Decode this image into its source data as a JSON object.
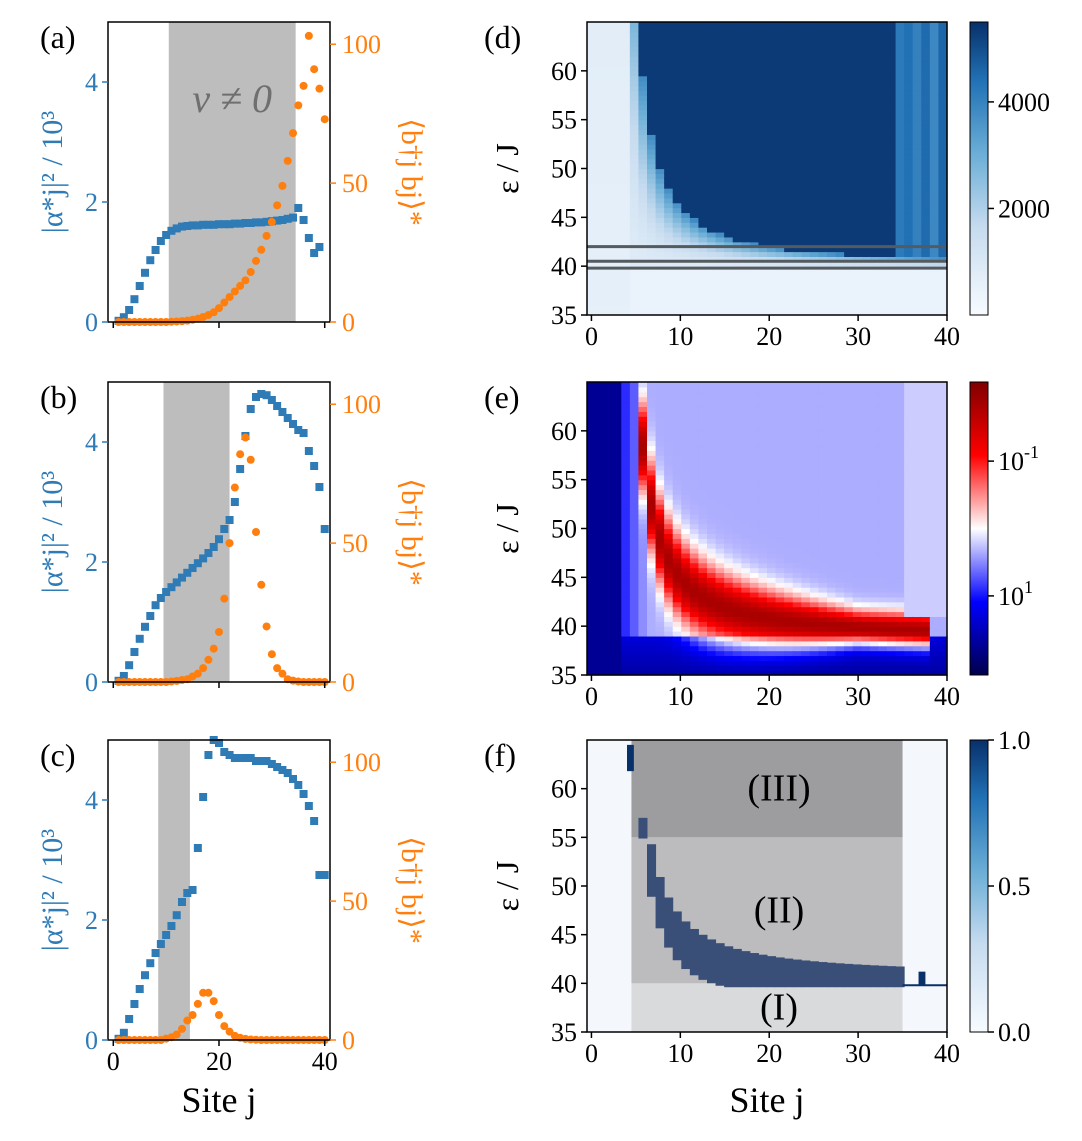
{
  "colors": {
    "blue": "#2f7bb6",
    "orange": "#ff7f0e",
    "shade": "#bdbdbd",
    "region_I": "#d9dadc",
    "region_II": "#bcbcbe",
    "region_III": "#9d9d9f",
    "mask_blue": "#3a4f78",
    "line_gray": "#555a5e"
  },
  "labels": {
    "site_j": "Site j",
    "eps_J": "ε / J",
    "alpha_axis": "|α*j|² / 10³",
    "n_axis": "⟨b†j bj⟩*",
    "nu_neq_0": "ν ≠ 0",
    "region_I": "(I)",
    "region_II": "(II)",
    "region_III": "(III)"
  },
  "chart_data": [
    {
      "panel": "(a)",
      "type": "scatter",
      "xlim": [
        -1,
        41
      ],
      "x_ticks": [
        "0",
        "20",
        "40"
      ],
      "x_tick_labels_shown": false,
      "ylim_left": [
        0,
        5
      ],
      "yticks_left": [
        "0",
        "2",
        "4"
      ],
      "ylim_right": [
        0,
        108
      ],
      "yticks_right": [
        "0",
        "50",
        "100"
      ],
      "shade_range": [
        10.5,
        34.5
      ],
      "annotation": "ν ≠ 0",
      "series": [
        {
          "name": "|α*j|²/10³",
          "axis": "left",
          "marker": "square",
          "x": [
            1,
            2,
            3,
            4,
            5,
            6,
            7,
            8,
            9,
            10,
            11,
            12,
            13,
            14,
            15,
            16,
            17,
            18,
            19,
            20,
            21,
            22,
            23,
            24,
            25,
            26,
            27,
            28,
            29,
            30,
            31,
            32,
            33,
            34,
            35,
            36,
            37,
            38,
            39
          ],
          "values": [
            0.02,
            0.08,
            0.2,
            0.38,
            0.6,
            0.82,
            1.03,
            1.2,
            1.35,
            1.45,
            1.52,
            1.56,
            1.59,
            1.6,
            1.61,
            1.61,
            1.62,
            1.62,
            1.62,
            1.63,
            1.63,
            1.63,
            1.64,
            1.64,
            1.65,
            1.65,
            1.66,
            1.66,
            1.67,
            1.68,
            1.69,
            1.7,
            1.72,
            1.74,
            1.9,
            1.7,
            1.4,
            1.15,
            1.25
          ]
        },
        {
          "name": "⟨b†j bj⟩*",
          "axis": "right",
          "marker": "circle",
          "x": [
            1,
            2,
            3,
            4,
            5,
            6,
            7,
            8,
            9,
            10,
            11,
            12,
            13,
            14,
            15,
            16,
            17,
            18,
            19,
            20,
            21,
            22,
            23,
            24,
            25,
            26,
            27,
            28,
            29,
            30,
            31,
            32,
            33,
            34,
            35,
            36,
            37,
            38,
            39,
            40
          ],
          "values": [
            0,
            0,
            0,
            0,
            0,
            0,
            0,
            0,
            0,
            0,
            0.1,
            0.2,
            0.3,
            0.5,
            0.8,
            1.2,
            1.8,
            2.5,
            3.5,
            5,
            7,
            9,
            11,
            13,
            15,
            18,
            22,
            26,
            31,
            36,
            42,
            49,
            58,
            68,
            78,
            85,
            103,
            91,
            84,
            73
          ]
        }
      ]
    },
    {
      "panel": "(b)",
      "type": "scatter",
      "xlim": [
        -1,
        41
      ],
      "x_ticks": [
        "0",
        "20",
        "40"
      ],
      "x_tick_labels_shown": false,
      "ylim_left": [
        0,
        5
      ],
      "yticks_left": [
        "0",
        "2",
        "4"
      ],
      "ylim_right": [
        0,
        108
      ],
      "yticks_right": [
        "0",
        "50",
        "100"
      ],
      "shade_range": [
        9.5,
        22
      ],
      "series": [
        {
          "name": "|α*j|²/10³",
          "axis": "left",
          "marker": "square",
          "x": [
            1,
            2,
            3,
            4,
            5,
            6,
            7,
            8,
            9,
            10,
            11,
            12,
            13,
            14,
            15,
            16,
            17,
            18,
            19,
            20,
            21,
            22,
            23,
            24,
            25,
            26,
            27,
            28,
            29,
            30,
            31,
            32,
            33,
            34,
            35,
            36,
            37,
            38,
            39,
            40
          ],
          "values": [
            0.02,
            0.1,
            0.28,
            0.5,
            0.72,
            0.92,
            1.1,
            1.28,
            1.4,
            1.5,
            1.58,
            1.66,
            1.74,
            1.82,
            1.9,
            1.98,
            2.06,
            2.15,
            2.25,
            2.38,
            2.55,
            2.7,
            3.0,
            3.55,
            4.1,
            4.55,
            4.75,
            4.8,
            4.78,
            4.7,
            4.6,
            4.5,
            4.4,
            4.3,
            4.2,
            4.15,
            3.85,
            3.6,
            3.25,
            2.55
          ]
        },
        {
          "name": "⟨b†j bj⟩*",
          "axis": "right",
          "marker": "circle",
          "x": [
            1,
            2,
            3,
            4,
            5,
            6,
            7,
            8,
            9,
            10,
            11,
            12,
            13,
            14,
            15,
            16,
            17,
            18,
            19,
            20,
            21,
            22,
            23,
            24,
            25,
            26,
            27,
            28,
            29,
            30,
            31,
            32,
            33,
            34,
            35,
            36,
            37,
            38,
            39,
            40
          ],
          "values": [
            0,
            0,
            0,
            0,
            0,
            0,
            0,
            0,
            0,
            0,
            0.2,
            0.4,
            0.7,
            1,
            2,
            3,
            5,
            8,
            12,
            18,
            30,
            50,
            70,
            82,
            88,
            80,
            54,
            35,
            20,
            10,
            5,
            3,
            1,
            0.5,
            0.2,
            0,
            0,
            0,
            0,
            0
          ]
        }
      ]
    },
    {
      "panel": "(c)",
      "type": "scatter",
      "xlim": [
        -1,
        41
      ],
      "x_ticks": [
        "0",
        "20",
        "40"
      ],
      "xlabel": "Site j",
      "ylim_left": [
        0,
        5
      ],
      "yticks_left": [
        "0",
        "2",
        "4"
      ],
      "ylim_right": [
        0,
        108
      ],
      "yticks_right": [
        "0",
        "50",
        "100"
      ],
      "shade_range": [
        8.5,
        14.5
      ],
      "series": [
        {
          "name": "|α*j|²/10³",
          "axis": "left",
          "marker": "square",
          "x": [
            1,
            2,
            3,
            4,
            5,
            6,
            7,
            8,
            9,
            10,
            11,
            12,
            13,
            14,
            15,
            16,
            17,
            18,
            19,
            20,
            21,
            22,
            23,
            24,
            25,
            26,
            27,
            28,
            29,
            30,
            31,
            32,
            33,
            34,
            35,
            36,
            37,
            38,
            39,
            40
          ],
          "values": [
            0.02,
            0.12,
            0.35,
            0.6,
            0.85,
            1.08,
            1.28,
            1.45,
            1.6,
            1.75,
            1.9,
            2.08,
            2.3,
            2.45,
            2.5,
            3.2,
            4.05,
            4.75,
            5.0,
            4.95,
            4.8,
            4.75,
            4.7,
            4.7,
            4.7,
            4.7,
            4.65,
            4.65,
            4.65,
            4.6,
            4.55,
            4.5,
            4.45,
            4.35,
            4.25,
            4.1,
            3.9,
            3.65,
            2.75,
            2.75
          ]
        },
        {
          "name": "⟨b†j bj⟩*",
          "axis": "right",
          "marker": "circle",
          "x": [
            1,
            2,
            3,
            4,
            5,
            6,
            7,
            8,
            9,
            10,
            11,
            12,
            13,
            14,
            15,
            16,
            17,
            18,
            19,
            20,
            21,
            22,
            23,
            24,
            25,
            26,
            27,
            28,
            29,
            30,
            31,
            32,
            33,
            34,
            35,
            36,
            37,
            38,
            39,
            40
          ],
          "values": [
            0,
            0,
            0,
            0,
            0,
            0,
            0,
            0,
            0,
            0.5,
            1,
            2,
            4,
            7,
            9,
            13,
            17,
            17,
            14,
            9,
            5,
            3,
            1.5,
            0.8,
            0.4,
            0.2,
            0.1,
            0,
            0,
            0,
            0,
            0,
            0,
            0,
            0,
            0,
            0,
            0,
            0,
            0
          ]
        }
      ]
    },
    {
      "panel": "(d)",
      "type": "heatmap",
      "xlim": [
        -0.5,
        40
      ],
      "x_ticks": [
        "0",
        "10",
        "20",
        "30",
        "40"
      ],
      "ylim": [
        35,
        65
      ],
      "y_ticks": [
        "35",
        "40",
        "45",
        "50",
        "55",
        "60"
      ],
      "ylabel": "ε / J",
      "colorbar": {
        "min": 0,
        "max": 5500,
        "ticks": [
          "2000",
          "4000"
        ]
      },
      "hlines": [
        39.8,
        40.5,
        42.0
      ]
    },
    {
      "panel": "(e)",
      "type": "heatmap",
      "xlim": [
        -0.5,
        40
      ],
      "x_ticks": [
        "0",
        "10",
        "20",
        "30",
        "40"
      ],
      "ylim": [
        35,
        65
      ],
      "y_ticks": [
        "35",
        "40",
        "45",
        "50",
        "55",
        "60"
      ],
      "ylabel": "ε / J",
      "colorbar": {
        "scale": "log",
        "ticks": [
          "10^-1",
          "10^1"
        ]
      }
    },
    {
      "panel": "(f)",
      "type": "heatmap",
      "xlim": [
        -0.5,
        40
      ],
      "x_ticks": [
        "0",
        "10",
        "20",
        "30",
        "40"
      ],
      "ylim": [
        35,
        65
      ],
      "y_ticks": [
        "35",
        "40",
        "45",
        "50",
        "55",
        "60"
      ],
      "ylabel": "ε / J",
      "xlabel": "Site j",
      "colorbar": {
        "min": 0,
        "max": 1,
        "ticks": [
          "0.0",
          "0.5",
          "1.0"
        ]
      },
      "regions": [
        {
          "label": "(I)",
          "x_range": [
            4.5,
            35
          ],
          "y_range": [
            35,
            40
          ]
        },
        {
          "label": "(II)",
          "x_range": [
            4.5,
            35
          ],
          "y_range": [
            40,
            55
          ]
        },
        {
          "label": "(III)",
          "x_range": [
            4.5,
            35
          ],
          "y_range": [
            55,
            65
          ]
        }
      ]
    }
  ]
}
